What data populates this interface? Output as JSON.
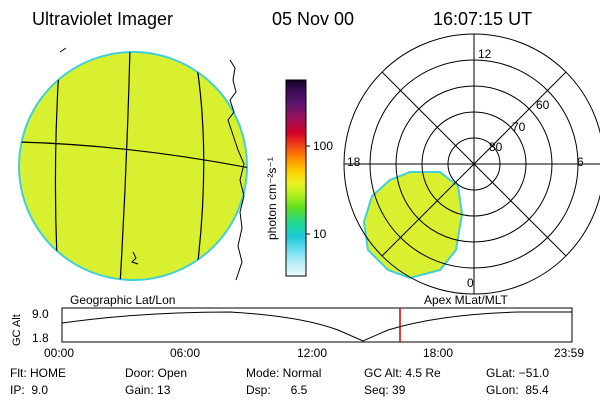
{
  "header": {
    "title": "Ultraviolet Imager",
    "date": "05 Nov 00",
    "time": "16:07:15 UT"
  },
  "colorbar": {
    "unit_label": "photon cm⁻²s⁻¹",
    "ticks": [
      "100",
      "10"
    ],
    "colors": [
      "#140028",
      "#3a0a50",
      "#5a1670",
      "#a0105a",
      "#d4002a",
      "#f04018",
      "#ff8c00",
      "#ffc800",
      "#f0f020",
      "#b8f020",
      "#60e020",
      "#20d890",
      "#20c8d8",
      "#70e0f0",
      "#c0f0f8",
      "#eef8fa"
    ]
  },
  "panels": {
    "left_label": "Geographic Lat/Lon",
    "right_label": "Apex MLat/MLT",
    "polar_mlt": [
      "12",
      "18",
      "6",
      "0"
    ],
    "polar_lat": [
      "60",
      "70",
      "80"
    ],
    "fill_color": "#d8f030",
    "edge_color": "#40d0d8"
  },
  "timeline": {
    "axis_label": "GC Alt",
    "yticks": [
      "9.0",
      "1.8"
    ],
    "xticks": [
      "00:00",
      "06:00",
      "12:00",
      "18:00",
      "23:59"
    ],
    "marker_time": "16:07",
    "marker_color": "#d00000"
  },
  "info": {
    "flt": "Flt: HOME",
    "ip": "IP:  9.0",
    "door": "Door: Open",
    "gain": "Gain: 13",
    "mode": "Mode: Normal",
    "dsp": "Dsp:      6.5",
    "gcalt": "GC Alt: 4.5 Re",
    "seq": "Seq: 39",
    "glat": "GLat: −51.0",
    "glon": "GLon:  85.4"
  }
}
